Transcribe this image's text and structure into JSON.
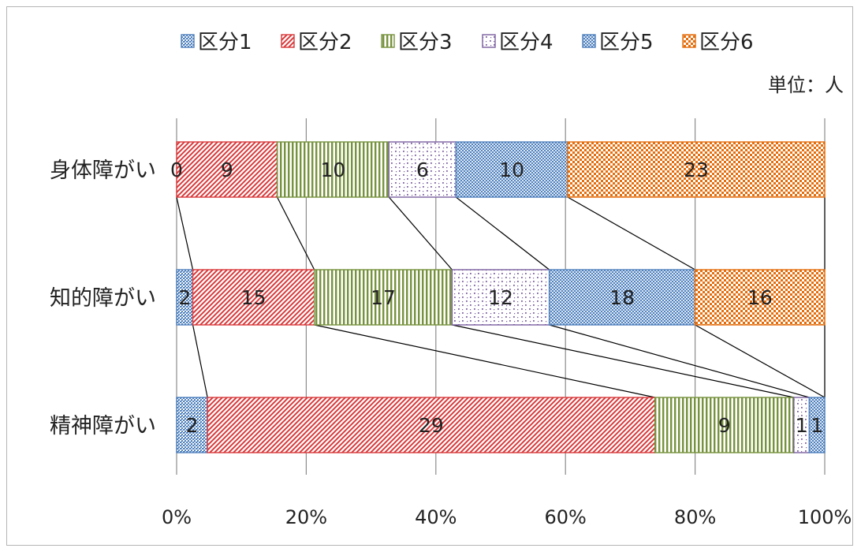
{
  "chart_data": {
    "type": "bar",
    "orientation": "horizontal",
    "stacked": "percent",
    "unit_label": "単位：人",
    "categories": [
      "身体障がい",
      "知的障がい",
      "精神障がい"
    ],
    "series": [
      {
        "name": "区分1",
        "values": [
          0,
          2,
          2
        ],
        "color": "#4f81bd",
        "pattern": "dense-dots"
      },
      {
        "name": "区分2",
        "values": [
          9,
          15,
          29
        ],
        "color": "#d9383a",
        "pattern": "diagonal-stripes"
      },
      {
        "name": "区分3",
        "values": [
          10,
          17,
          9
        ],
        "color": "#76923c",
        "pattern": "vertical-stripes"
      },
      {
        "name": "区分4",
        "values": [
          6,
          12,
          1
        ],
        "color": "#7a5fa0",
        "pattern": "sparse-dots"
      },
      {
        "name": "区分5",
        "values": [
          10,
          18,
          1
        ],
        "color": "#4f81bd",
        "pattern": "fine-checker"
      },
      {
        "name": "区分6",
        "values": [
          23,
          16,
          0
        ],
        "color": "#e46c0a",
        "pattern": "coarse-checker"
      }
    ],
    "x_ticks": [
      "0%",
      "20%",
      "40%",
      "60%",
      "80%",
      "100%"
    ],
    "xlim": [
      0,
      100
    ],
    "grid": "vertical",
    "legend": "top",
    "series_lines": true,
    "data_labels": [
      [
        "0",
        "9",
        "10",
        "6",
        "10",
        "23"
      ],
      [
        "2",
        "15",
        "17",
        "12",
        "18",
        "16"
      ],
      [
        "2",
        "29",
        "9",
        "1",
        "1",
        ""
      ]
    ]
  }
}
